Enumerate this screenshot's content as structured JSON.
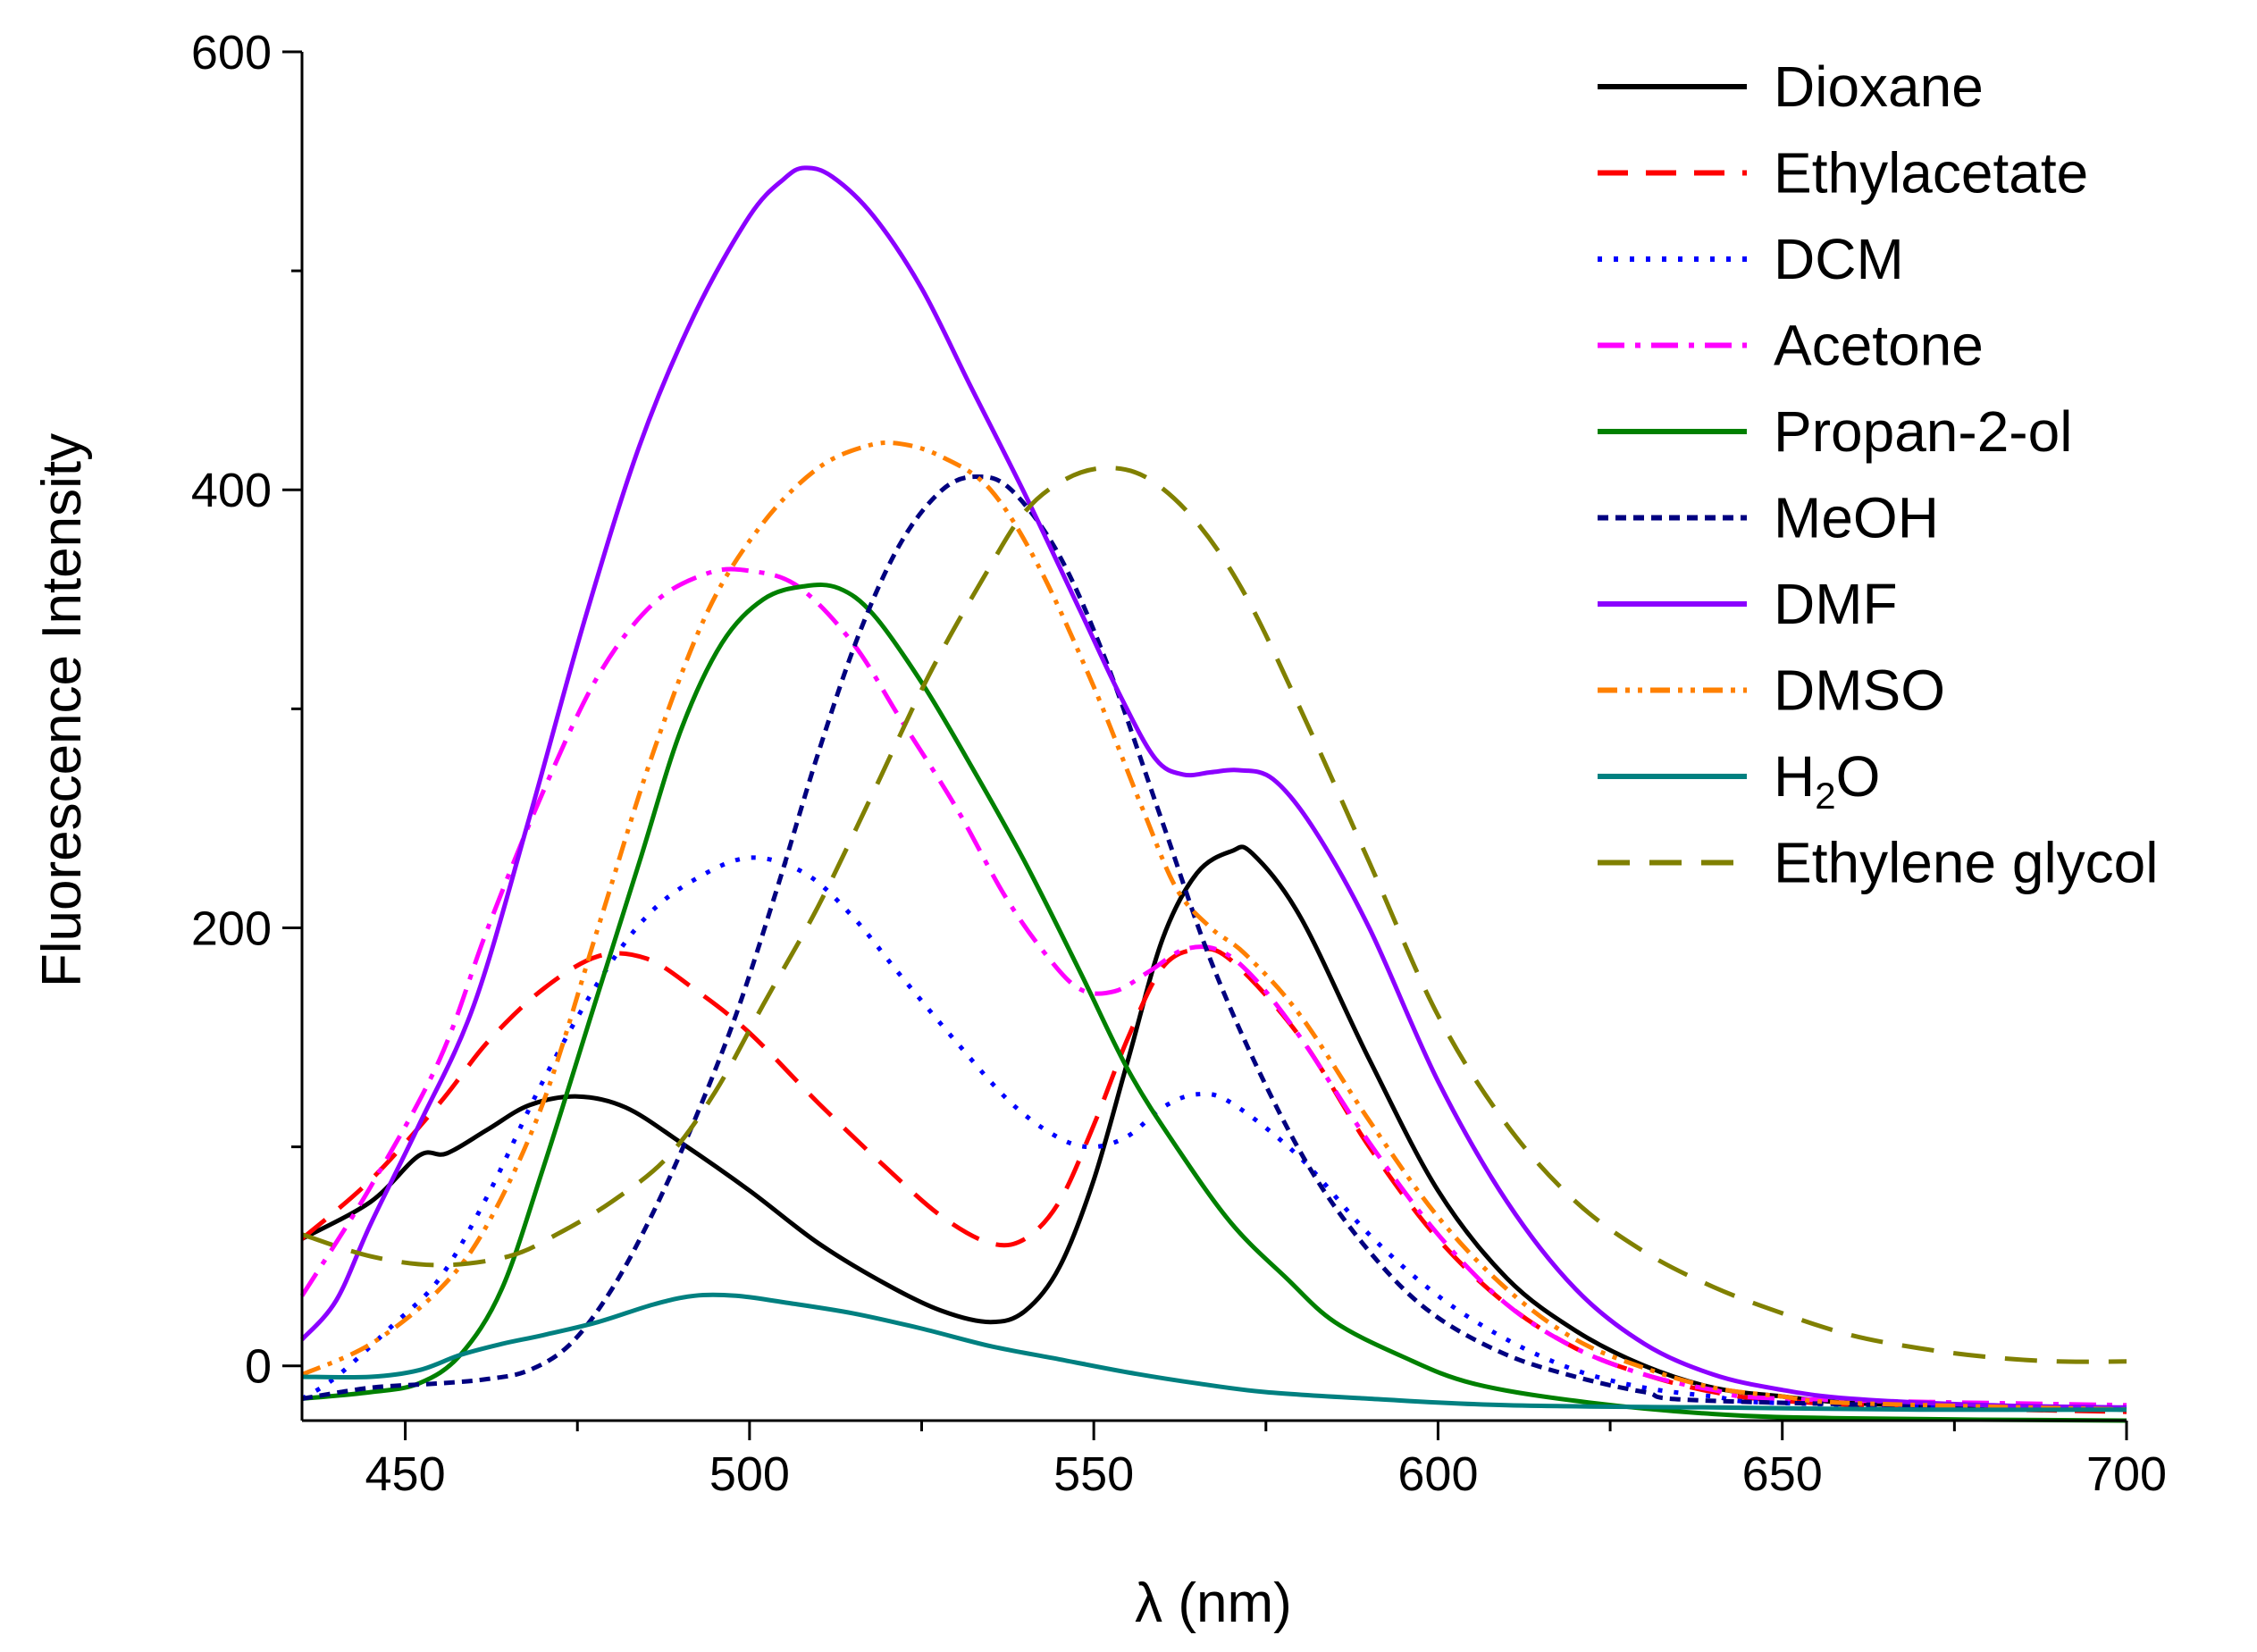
{
  "chart_data": {
    "type": "line",
    "title": "",
    "xlabel": "λ (nm)",
    "ylabel": "Fluorescence Intensity",
    "xlim": [
      435,
      700
    ],
    "ylim": [
      -25,
      600
    ],
    "x_ticks": [
      450,
      500,
      550,
      600,
      650,
      700
    ],
    "y_ticks": [
      0,
      200,
      400,
      600
    ],
    "x_tick_labels": [
      "450",
      "500",
      "550",
      "600",
      "650",
      "700"
    ],
    "y_tick_labels": [
      "0",
      "200",
      "400",
      "600"
    ],
    "legend_position": "top-right",
    "series": [
      {
        "name": "Dioxane",
        "label_main": "Dioxane",
        "color": "#000000",
        "dash": "solid",
        "points": [
          [
            435,
            58
          ],
          [
            445,
            75
          ],
          [
            452,
            96
          ],
          [
            456,
            97
          ],
          [
            462,
            108
          ],
          [
            468,
            119
          ],
          [
            475,
            123
          ],
          [
            482,
            118
          ],
          [
            490,
            102
          ],
          [
            500,
            80
          ],
          [
            510,
            56
          ],
          [
            520,
            37
          ],
          [
            528,
            25
          ],
          [
            535,
            20
          ],
          [
            540,
            25
          ],
          [
            545,
            45
          ],
          [
            550,
            85
          ],
          [
            555,
            140
          ],
          [
            560,
            195
          ],
          [
            565,
            225
          ],
          [
            570,
            235
          ],
          [
            573,
            234
          ],
          [
            580,
            205
          ],
          [
            590,
            140
          ],
          [
            600,
            80
          ],
          [
            610,
            40
          ],
          [
            620,
            16
          ],
          [
            630,
            0
          ],
          [
            640,
            -10
          ],
          [
            650,
            -14
          ],
          [
            660,
            -17
          ],
          [
            680,
            -19
          ],
          [
            700,
            -20
          ]
        ]
      },
      {
        "name": "Ethylacetate",
        "label_main": "Ethylacetate",
        "color": "#ff0000",
        "dash": "dash",
        "points": [
          [
            435,
            58
          ],
          [
            445,
            85
          ],
          [
            455,
            120
          ],
          [
            462,
            148
          ],
          [
            470,
            172
          ],
          [
            478,
            187
          ],
          [
            485,
            186
          ],
          [
            492,
            172
          ],
          [
            500,
            152
          ],
          [
            510,
            120
          ],
          [
            520,
            90
          ],
          [
            528,
            68
          ],
          [
            535,
            56
          ],
          [
            540,
            58
          ],
          [
            545,
            75
          ],
          [
            550,
            110
          ],
          [
            555,
            150
          ],
          [
            560,
            182
          ],
          [
            565,
            190
          ],
          [
            570,
            185
          ],
          [
            580,
            150
          ],
          [
            590,
            100
          ],
          [
            600,
            58
          ],
          [
            610,
            28
          ],
          [
            620,
            8
          ],
          [
            630,
            -4
          ],
          [
            640,
            -12
          ],
          [
            650,
            -16
          ],
          [
            670,
            -19
          ],
          [
            700,
            -21
          ]
        ]
      },
      {
        "name": "DCM",
        "label_main": "DCM",
        "color": "#0000ff",
        "dash": "dot",
        "points": [
          [
            435,
            -15
          ],
          [
            440,
            -5
          ],
          [
            448,
            18
          ],
          [
            455,
            40
          ],
          [
            462,
            78
          ],
          [
            470,
            130
          ],
          [
            478,
            175
          ],
          [
            485,
            205
          ],
          [
            492,
            222
          ],
          [
            500,
            232
          ],
          [
            508,
            225
          ],
          [
            515,
            205
          ],
          [
            522,
            178
          ],
          [
            530,
            148
          ],
          [
            538,
            120
          ],
          [
            545,
            104
          ],
          [
            550,
            100
          ],
          [
            555,
            105
          ],
          [
            560,
            118
          ],
          [
            565,
            124
          ],
          [
            570,
            120
          ],
          [
            580,
            95
          ],
          [
            590,
            60
          ],
          [
            600,
            32
          ],
          [
            610,
            12
          ],
          [
            620,
            -2
          ],
          [
            630,
            -10
          ],
          [
            640,
            -14
          ],
          [
            650,
            -17
          ],
          [
            700,
            -20
          ]
        ]
      },
      {
        "name": "Acetone",
        "label_main": "Acetone",
        "color": "#ff00ff",
        "dash": "dashdot",
        "points": [
          [
            435,
            32
          ],
          [
            445,
            82
          ],
          [
            455,
            140
          ],
          [
            462,
            200
          ],
          [
            470,
            262
          ],
          [
            478,
            315
          ],
          [
            486,
            348
          ],
          [
            494,
            362
          ],
          [
            500,
            363
          ],
          [
            507,
            356
          ],
          [
            515,
            330
          ],
          [
            522,
            295
          ],
          [
            530,
            255
          ],
          [
            537,
            215
          ],
          [
            543,
            188
          ],
          [
            548,
            172
          ],
          [
            553,
            171
          ],
          [
            558,
            180
          ],
          [
            563,
            190
          ],
          [
            568,
            190
          ],
          [
            573,
            178
          ],
          [
            580,
            150
          ],
          [
            590,
            102
          ],
          [
            600,
            60
          ],
          [
            610,
            28
          ],
          [
            620,
            8
          ],
          [
            630,
            -4
          ],
          [
            640,
            -11
          ],
          [
            650,
            -15
          ],
          [
            700,
            -18
          ]
        ]
      },
      {
        "name": "Propan-2-ol",
        "label_main": "Propan-2-ol",
        "color": "#008000",
        "dash": "solid",
        "points": [
          [
            435,
            -15
          ],
          [
            445,
            -12
          ],
          [
            452,
            -8
          ],
          [
            458,
            5
          ],
          [
            464,
            35
          ],
          [
            470,
            90
          ],
          [
            477,
            160
          ],
          [
            484,
            230
          ],
          [
            490,
            290
          ],
          [
            496,
            330
          ],
          [
            502,
            350
          ],
          [
            508,
            356
          ],
          [
            513,
            355
          ],
          [
            518,
            343
          ],
          [
            525,
            312
          ],
          [
            532,
            275
          ],
          [
            540,
            230
          ],
          [
            548,
            180
          ],
          [
            555,
            135
          ],
          [
            562,
            100
          ],
          [
            570,
            65
          ],
          [
            578,
            40
          ],
          [
            585,
            20
          ],
          [
            595,
            4
          ],
          [
            605,
            -8
          ],
          [
            620,
            -16
          ],
          [
            640,
            -22
          ],
          [
            660,
            -24
          ],
          [
            700,
            -25
          ]
        ]
      },
      {
        "name": "MeOH",
        "label_main": "MeOH",
        "color": "#000080",
        "dash": "shortdash",
        "points": [
          [
            435,
            -15
          ],
          [
            445,
            -10
          ],
          [
            455,
            -8
          ],
          [
            462,
            -6
          ],
          [
            468,
            -2
          ],
          [
            474,
            10
          ],
          [
            480,
            35
          ],
          [
            486,
            70
          ],
          [
            492,
            112
          ],
          [
            498,
            160
          ],
          [
            504,
            218
          ],
          [
            510,
            280
          ],
          [
            516,
            335
          ],
          [
            522,
            376
          ],
          [
            528,
            400
          ],
          [
            533,
            406
          ],
          [
            538,
            400
          ],
          [
            545,
            370
          ],
          [
            552,
            320
          ],
          [
            560,
            248
          ],
          [
            567,
            185
          ],
          [
            575,
            128
          ],
          [
            583,
            82
          ],
          [
            592,
            45
          ],
          [
            600,
            22
          ],
          [
            610,
            5
          ],
          [
            620,
            -5
          ],
          [
            630,
            -12
          ],
          [
            640,
            -16
          ],
          [
            700,
            -20
          ]
        ]
      },
      {
        "name": "DMF",
        "label_main": "DMF",
        "color": "#8b00ff",
        "dash": "solid",
        "points": [
          [
            435,
            12
          ],
          [
            440,
            30
          ],
          [
            445,
            65
          ],
          [
            452,
            110
          ],
          [
            460,
            165
          ],
          [
            468,
            250
          ],
          [
            476,
            340
          ],
          [
            484,
            420
          ],
          [
            492,
            480
          ],
          [
            500,
            525
          ],
          [
            505,
            542
          ],
          [
            508,
            547
          ],
          [
            512,
            543
          ],
          [
            518,
            525
          ],
          [
            525,
            492
          ],
          [
            532,
            448
          ],
          [
            540,
            398
          ],
          [
            548,
            345
          ],
          [
            554,
            305
          ],
          [
            559,
            277
          ],
          [
            563,
            270
          ],
          [
            567,
            271
          ],
          [
            571,
            272
          ],
          [
            576,
            268
          ],
          [
            582,
            245
          ],
          [
            590,
            200
          ],
          [
            600,
            130
          ],
          [
            610,
            75
          ],
          [
            620,
            35
          ],
          [
            630,
            10
          ],
          [
            640,
            -4
          ],
          [
            650,
            -11
          ],
          [
            660,
            -15
          ],
          [
            680,
            -18
          ],
          [
            700,
            -19
          ]
        ]
      },
      {
        "name": "DMSO",
        "label_main": "DMSO",
        "color": "#ff8000",
        "dash": "dashdotdot",
        "points": [
          [
            435,
            -4
          ],
          [
            445,
            10
          ],
          [
            455,
            35
          ],
          [
            462,
            65
          ],
          [
            470,
            120
          ],
          [
            478,
            200
          ],
          [
            486,
            280
          ],
          [
            494,
            345
          ],
          [
            502,
            385
          ],
          [
            510,
            410
          ],
          [
            517,
            420
          ],
          [
            522,
            421
          ],
          [
            528,
            415
          ],
          [
            535,
            400
          ],
          [
            542,
            365
          ],
          [
            550,
            310
          ],
          [
            557,
            255
          ],
          [
            562,
            218
          ],
          [
            567,
            200
          ],
          [
            572,
            188
          ],
          [
            580,
            160
          ],
          [
            590,
            112
          ],
          [
            600,
            68
          ],
          [
            610,
            35
          ],
          [
            620,
            12
          ],
          [
            630,
            -1
          ],
          [
            640,
            -10
          ],
          [
            650,
            -14
          ],
          [
            660,
            -17
          ],
          [
            700,
            -20
          ]
        ]
      },
      {
        "name": "H2O",
        "label_main": "H",
        "label_sub": "2",
        "label_tail": "O",
        "color": "#008080",
        "dash": "solid",
        "points": [
          [
            435,
            -5
          ],
          [
            445,
            -5
          ],
          [
            452,
            -2
          ],
          [
            458,
            5
          ],
          [
            464,
            10
          ],
          [
            470,
            14
          ],
          [
            478,
            20
          ],
          [
            486,
            28
          ],
          [
            492,
            32
          ],
          [
            498,
            32
          ],
          [
            505,
            29
          ],
          [
            515,
            24
          ],
          [
            525,
            17
          ],
          [
            535,
            9
          ],
          [
            545,
            3
          ],
          [
            555,
            -3
          ],
          [
            565,
            -8
          ],
          [
            575,
            -12
          ],
          [
            590,
            -15
          ],
          [
            610,
            -18
          ],
          [
            640,
            -19
          ],
          [
            670,
            -20
          ],
          [
            700,
            -20
          ]
        ]
      },
      {
        "name": "Ethylene glycol",
        "label_main": "Ethylene glycol",
        "color": "#808000",
        "dash": "longdash",
        "points": [
          [
            435,
            60
          ],
          [
            445,
            50
          ],
          [
            455,
            46
          ],
          [
            465,
            50
          ],
          [
            472,
            60
          ],
          [
            480,
            75
          ],
          [
            488,
            95
          ],
          [
            495,
            125
          ],
          [
            502,
            165
          ],
          [
            510,
            210
          ],
          [
            518,
            262
          ],
          [
            526,
            315
          ],
          [
            534,
            360
          ],
          [
            540,
            390
          ],
          [
            546,
            405
          ],
          [
            552,
            410
          ],
          [
            558,
            405
          ],
          [
            565,
            385
          ],
          [
            572,
            352
          ],
          [
            580,
            300
          ],
          [
            590,
            230
          ],
          [
            600,
            160
          ],
          [
            610,
            110
          ],
          [
            620,
            75
          ],
          [
            630,
            52
          ],
          [
            640,
            36
          ],
          [
            650,
            24
          ],
          [
            660,
            14
          ],
          [
            670,
            8
          ],
          [
            680,
            4
          ],
          [
            690,
            2
          ],
          [
            700,
            2
          ]
        ]
      }
    ]
  }
}
